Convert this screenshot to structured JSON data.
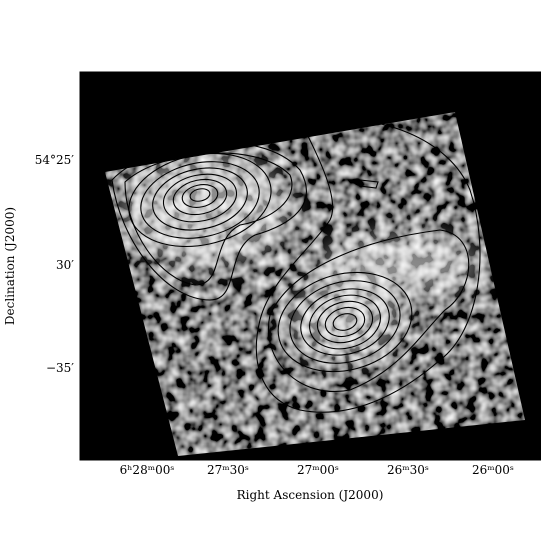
{
  "x_axis": {
    "label": "Right Ascension (J2000)",
    "ticks": [
      "6ʰ28ᵐ00ˢ",
      "27ᵐ30ˢ",
      "27ᵐ00ˢ",
      "26ᵐ30ˢ",
      "26ᵐ00ˢ"
    ]
  },
  "y_axis": {
    "label": "Declination (J2000)",
    "ticks": [
      "54°25′",
      "30′",
      "−35′"
    ]
  }
}
